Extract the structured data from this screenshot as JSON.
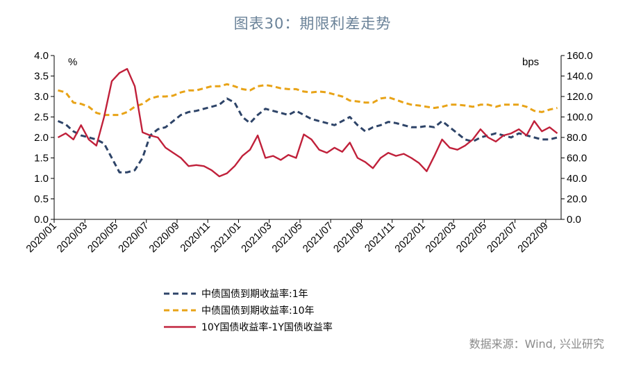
{
  "title": "图表30：期限利差走势",
  "source": "数据来源：Wind, 兴业研究",
  "chart_data": {
    "type": "line",
    "left_axis": {
      "unit": "%",
      "ylim": [
        0,
        4
      ],
      "ticks": [
        "0.0",
        "0.5",
        "1.0",
        "1.5",
        "2.0",
        "2.5",
        "3.0",
        "3.5",
        "4.0"
      ]
    },
    "right_axis": {
      "unit": "bps",
      "ylim": [
        0,
        160
      ],
      "ticks": [
        "0.0",
        "20.0",
        "40.0",
        "60.0",
        "80.0",
        "100.0",
        "120.0",
        "140.0",
        "160.0"
      ]
    },
    "x_ticks": [
      "2020/01",
      "2020/03",
      "2020/05",
      "2020/07",
      "2020/09",
      "2020/11",
      "2021/01",
      "2021/03",
      "2021/05",
      "2021/07",
      "2021/09",
      "2021/11",
      "2022/01",
      "2022/03",
      "2022/05",
      "2022/07",
      "2022/09"
    ],
    "x_range": [
      "2020/01",
      "2022/09"
    ],
    "grid": false,
    "legend_position": "bottom-left",
    "series": [
      {
        "name": "中债国债到期收益率:1年",
        "axis": "left",
        "color": "#2e4468",
        "style": "dashed",
        "points": [
          [
            "2020/01",
            2.4
          ],
          [
            "2020/01",
            2.32
          ],
          [
            "2020/02",
            2.15
          ],
          [
            "2020/02",
            2.05
          ],
          [
            "2020/03",
            2.0
          ],
          [
            "2020/03",
            1.95
          ],
          [
            "2020/04",
            1.85
          ],
          [
            "2020/04",
            1.5
          ],
          [
            "2020/05",
            1.15
          ],
          [
            "2020/05",
            1.15
          ],
          [
            "2020/06",
            1.2
          ],
          [
            "2020/06",
            1.5
          ],
          [
            "2020/07",
            2.05
          ],
          [
            "2020/07",
            2.2
          ],
          [
            "2020/08",
            2.25
          ],
          [
            "2020/08",
            2.4
          ],
          [
            "2020/09",
            2.55
          ],
          [
            "2020/09",
            2.62
          ],
          [
            "2020/10",
            2.65
          ],
          [
            "2020/10",
            2.7
          ],
          [
            "2020/11",
            2.75
          ],
          [
            "2020/11",
            2.8
          ],
          [
            "2020/12",
            2.95
          ],
          [
            "2020/12",
            2.85
          ],
          [
            "2021/01",
            2.5
          ],
          [
            "2021/01",
            2.35
          ],
          [
            "2021/02",
            2.55
          ],
          [
            "2021/02",
            2.7
          ],
          [
            "2021/03",
            2.65
          ],
          [
            "2021/03",
            2.6
          ],
          [
            "2021/04",
            2.55
          ],
          [
            "2021/04",
            2.65
          ],
          [
            "2021/05",
            2.55
          ],
          [
            "2021/05",
            2.45
          ],
          [
            "2021/06",
            2.4
          ],
          [
            "2021/06",
            2.35
          ],
          [
            "2021/07",
            2.3
          ],
          [
            "2021/07",
            2.4
          ],
          [
            "2021/08",
            2.5
          ],
          [
            "2021/08",
            2.3
          ],
          [
            "2021/09",
            2.15
          ],
          [
            "2021/09",
            2.25
          ],
          [
            "2021/10",
            2.3
          ],
          [
            "2021/10",
            2.38
          ],
          [
            "2021/11",
            2.35
          ],
          [
            "2021/11",
            2.3
          ],
          [
            "2021/12",
            2.25
          ],
          [
            "2021/12",
            2.25
          ],
          [
            "2022/01",
            2.28
          ],
          [
            "2022/01",
            2.25
          ],
          [
            "2022/02",
            2.4
          ],
          [
            "2022/02",
            2.25
          ],
          [
            "2022/03",
            2.1
          ],
          [
            "2022/03",
            1.95
          ],
          [
            "2022/04",
            1.9
          ],
          [
            "2022/04",
            2.0
          ],
          [
            "2022/05",
            2.05
          ],
          [
            "2022/05",
            2.1
          ],
          [
            "2022/06",
            2.05
          ],
          [
            "2022/06",
            2.0
          ],
          [
            "2022/07",
            2.1
          ],
          [
            "2022/07",
            2.05
          ],
          [
            "2022/08",
            2.0
          ],
          [
            "2022/08",
            1.95
          ],
          [
            "2022/09",
            1.95
          ],
          [
            "2022/09",
            2.0
          ]
        ]
      },
      {
        "name": "中债国债到期收益率:10年",
        "axis": "left",
        "color": "#e8a317",
        "style": "dashed",
        "points": [
          [
            "2020/01",
            3.15
          ],
          [
            "2020/01",
            3.1
          ],
          [
            "2020/02",
            2.85
          ],
          [
            "2020/02",
            2.82
          ],
          [
            "2020/03",
            2.75
          ],
          [
            "2020/03",
            2.6
          ],
          [
            "2020/04",
            2.55
          ],
          [
            "2020/04",
            2.55
          ],
          [
            "2020/05",
            2.55
          ],
          [
            "2020/05",
            2.62
          ],
          [
            "2020/06",
            2.75
          ],
          [
            "2020/06",
            2.82
          ],
          [
            "2020/07",
            2.95
          ],
          [
            "2020/07",
            3.0
          ],
          [
            "2020/08",
            3.0
          ],
          [
            "2020/08",
            3.02
          ],
          [
            "2020/09",
            3.1
          ],
          [
            "2020/09",
            3.15
          ],
          [
            "2020/10",
            3.15
          ],
          [
            "2020/10",
            3.2
          ],
          [
            "2020/11",
            3.25
          ],
          [
            "2020/11",
            3.25
          ],
          [
            "2020/12",
            3.3
          ],
          [
            "2020/12",
            3.25
          ],
          [
            "2021/01",
            3.18
          ],
          [
            "2021/01",
            3.15
          ],
          [
            "2021/02",
            3.25
          ],
          [
            "2021/02",
            3.28
          ],
          [
            "2021/03",
            3.25
          ],
          [
            "2021/03",
            3.2
          ],
          [
            "2021/04",
            3.18
          ],
          [
            "2021/04",
            3.18
          ],
          [
            "2021/05",
            3.12
          ],
          [
            "2021/05",
            3.1
          ],
          [
            "2021/06",
            3.12
          ],
          [
            "2021/06",
            3.1
          ],
          [
            "2021/07",
            3.05
          ],
          [
            "2021/07",
            3.0
          ],
          [
            "2021/08",
            2.9
          ],
          [
            "2021/08",
            2.88
          ],
          [
            "2021/09",
            2.85
          ],
          [
            "2021/09",
            2.85
          ],
          [
            "2021/10",
            2.95
          ],
          [
            "2021/10",
            2.98
          ],
          [
            "2021/11",
            2.92
          ],
          [
            "2021/11",
            2.85
          ],
          [
            "2021/12",
            2.8
          ],
          [
            "2021/12",
            2.78
          ],
          [
            "2022/01",
            2.75
          ],
          [
            "2022/01",
            2.72
          ],
          [
            "2022/02",
            2.75
          ],
          [
            "2022/02",
            2.8
          ],
          [
            "2022/03",
            2.8
          ],
          [
            "2022/03",
            2.78
          ],
          [
            "2022/04",
            2.75
          ],
          [
            "2022/04",
            2.8
          ],
          [
            "2022/05",
            2.8
          ],
          [
            "2022/05",
            2.75
          ],
          [
            "2022/06",
            2.8
          ],
          [
            "2022/06",
            2.8
          ],
          [
            "2022/07",
            2.8
          ],
          [
            "2022/07",
            2.75
          ],
          [
            "2022/08",
            2.65
          ],
          [
            "2022/08",
            2.62
          ],
          [
            "2022/09",
            2.68
          ],
          [
            "2022/09",
            2.72
          ]
        ]
      },
      {
        "name": "10Y国债收益率-1Y国债收益率",
        "axis": "right",
        "color": "#c0203a",
        "style": "solid",
        "points": [
          [
            "2020/01",
            80
          ],
          [
            "2020/01",
            84
          ],
          [
            "2020/02",
            78
          ],
          [
            "2020/02",
            92
          ],
          [
            "2020/03",
            78
          ],
          [
            "2020/03",
            72
          ],
          [
            "2020/04",
            100
          ],
          [
            "2020/04",
            135
          ],
          [
            "2020/05",
            143
          ],
          [
            "2020/05",
            147
          ],
          [
            "2020/06",
            130
          ],
          [
            "2020/06",
            85
          ],
          [
            "2020/07",
            82
          ],
          [
            "2020/07",
            80
          ],
          [
            "2020/08",
            70
          ],
          [
            "2020/08",
            65
          ],
          [
            "2020/09",
            60
          ],
          [
            "2020/09",
            52
          ],
          [
            "2020/10",
            53
          ],
          [
            "2020/10",
            52
          ],
          [
            "2020/11",
            48
          ],
          [
            "2020/11",
            42
          ],
          [
            "2020/12",
            45
          ],
          [
            "2020/12",
            52
          ],
          [
            "2021/01",
            62
          ],
          [
            "2021/01",
            68
          ],
          [
            "2021/02",
            82
          ],
          [
            "2021/02",
            60
          ],
          [
            "2021/03",
            62
          ],
          [
            "2021/03",
            58
          ],
          [
            "2021/04",
            63
          ],
          [
            "2021/04",
            60
          ],
          [
            "2021/05",
            83
          ],
          [
            "2021/05",
            78
          ],
          [
            "2021/06",
            68
          ],
          [
            "2021/06",
            65
          ],
          [
            "2021/07",
            70
          ],
          [
            "2021/07",
            66
          ],
          [
            "2021/08",
            75
          ],
          [
            "2021/08",
            60
          ],
          [
            "2021/09",
            56
          ],
          [
            "2021/09",
            50
          ],
          [
            "2021/10",
            60
          ],
          [
            "2021/10",
            65
          ],
          [
            "2021/11",
            62
          ],
          [
            "2021/11",
            64
          ],
          [
            "2021/12",
            60
          ],
          [
            "2021/12",
            55
          ],
          [
            "2022/01",
            47
          ],
          [
            "2022/01",
            62
          ],
          [
            "2022/02",
            78
          ],
          [
            "2022/02",
            70
          ],
          [
            "2022/03",
            68
          ],
          [
            "2022/03",
            72
          ],
          [
            "2022/04",
            78
          ],
          [
            "2022/04",
            88
          ],
          [
            "2022/05",
            80
          ],
          [
            "2022/05",
            76
          ],
          [
            "2022/06",
            82
          ],
          [
            "2022/06",
            84
          ],
          [
            "2022/07",
            88
          ],
          [
            "2022/07",
            82
          ],
          [
            "2022/08",
            96
          ],
          [
            "2022/08",
            86
          ],
          [
            "2022/09",
            90
          ],
          [
            "2022/09",
            84
          ]
        ]
      }
    ]
  }
}
